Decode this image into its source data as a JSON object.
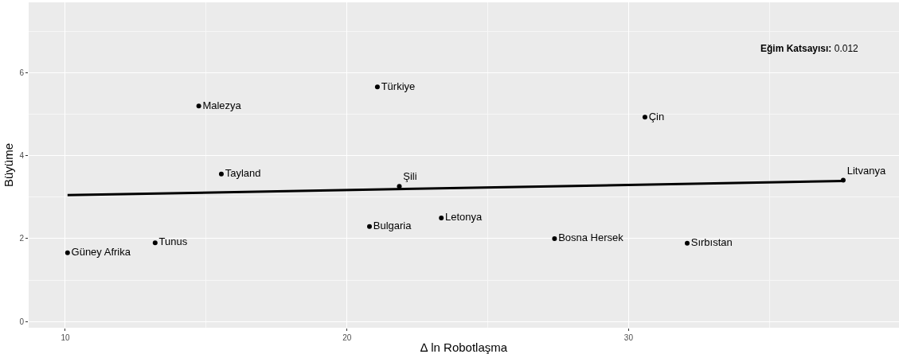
{
  "chart_data": {
    "type": "scatter",
    "xlabel": "∆ ln Robotlaşma",
    "ylabel": "Büyüme",
    "xlim": [
      8.7,
      39.6
    ],
    "xticks": [
      10,
      20,
      30
    ],
    "ylim": [
      -0.15,
      7.7
    ],
    "yticks": [
      0,
      2,
      4,
      6
    ],
    "grid": true,
    "marker": "circle",
    "annotations": [
      "Eğim Katsayısı: 0.012"
    ],
    "series": [
      {
        "name": "Güney Afrika",
        "color": "#000000",
        "x": [
          10.08
        ],
        "values": [
          1.66
        ]
      },
      {
        "name": "Tunus",
        "color": "#000000",
        "x": [
          13.19
        ],
        "values": [
          1.9
        ]
      },
      {
        "name": "Malezya",
        "color": "#000000",
        "x": [
          14.74
        ],
        "values": [
          5.2
        ]
      },
      {
        "name": "Tayland",
        "color": "#000000",
        "x": [
          15.54
        ],
        "values": [
          3.56
        ]
      },
      {
        "name": "Türkiye",
        "color": "#000000",
        "x": [
          21.08
        ],
        "values": [
          5.66
        ]
      },
      {
        "name": "Şili",
        "color": "#000000",
        "x": [
          21.86
        ],
        "values": [
          3.26
        ]
      },
      {
        "name": "Bulgaria",
        "color": "#000000",
        "x": [
          20.8
        ],
        "values": [
          2.29
        ]
      },
      {
        "name": "Letonya",
        "color": "#000000",
        "x": [
          23.35
        ],
        "values": [
          2.5
        ]
      },
      {
        "name": "Bosna Hersek",
        "color": "#000000",
        "x": [
          27.37
        ],
        "values": [
          2.0
        ]
      },
      {
        "name": "Çin",
        "color": "#000000",
        "x": [
          30.58
        ],
        "values": [
          4.93
        ]
      },
      {
        "name": "Sırbıstan",
        "color": "#000000",
        "x": [
          32.08
        ],
        "values": [
          1.89
        ]
      },
      {
        "name": "Litvanya",
        "color": "#000000",
        "x": [
          37.62
        ],
        "values": [
          3.41
        ]
      },
      {
        "type": "line",
        "color": "#000000",
        "line_style": "solid",
        "marker": "none",
        "x": [
          10.08,
          37.62
        ],
        "values": [
          3.05,
          3.39
        ]
      }
    ]
  }
}
